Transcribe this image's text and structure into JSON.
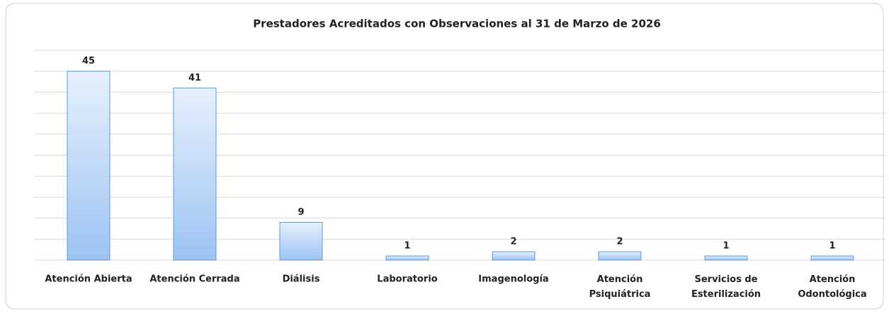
{
  "chart_data": {
    "type": "bar",
    "title": "Prestadores Acreditados con Observaciones al 31 de Marzo  de 2026",
    "categories": [
      "Atención Abierta",
      "Atención Cerrada",
      "Diálisis",
      "Laboratorio",
      "Imagenología",
      "Atención\nPsiquiátrica",
      "Servicios de\nEsterilización",
      "Atención\nOdontológica"
    ],
    "values": [
      45,
      41,
      9,
      1,
      2,
      2,
      1,
      1
    ],
    "color": "#9dc3f3",
    "ylim": [
      0,
      50
    ],
    "yticks": [
      0,
      5,
      10,
      15,
      20,
      25,
      30,
      35,
      40,
      45,
      50
    ],
    "grid": true
  }
}
